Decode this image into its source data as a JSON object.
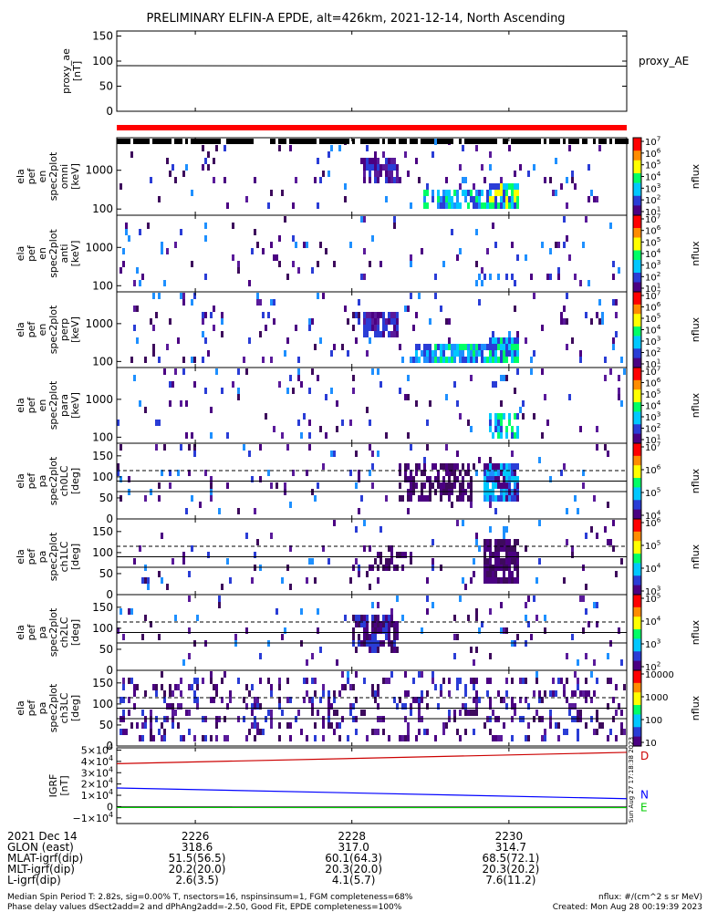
{
  "title": "PRELIMINARY ELFIN-A EPDE, alt=426km, 2021-12-14, North Ascending",
  "colors": {
    "red_bar": "#ff0000",
    "proxy_line": "#000000",
    "grf_d": "#cc0000",
    "grf_n": "#0000ff",
    "grf_e": "#00cc00",
    "colorscale": [
      "#ffffff",
      "#4b0082",
      "#2a3dd6",
      "#00c8ff",
      "#00ff66",
      "#ffff00",
      "#ff8c00",
      "#ff0000"
    ]
  },
  "chart_data": [
    {
      "type": "line",
      "panel": "proxy_ae",
      "ylabel_lines": [
        "proxy_ae",
        "[nT]"
      ],
      "legend": "proxy_AE",
      "yticks": [
        "150",
        "100",
        "50",
        "0"
      ],
      "ylim": [
        0,
        160
      ],
      "x": [
        "2225.0",
        "2231.5"
      ],
      "series": [
        {
          "name": "proxy_AE",
          "values": [
            91,
            90
          ]
        }
      ]
    },
    {
      "type": "heatmap",
      "panel": "en_omni",
      "ylabel_lines": [
        "ela",
        "pef",
        "en",
        "spec2plot",
        "omni",
        "[keV]"
      ],
      "yticks": [
        "1000",
        "100"
      ],
      "cbar_ticks": [
        "10^7",
        "10^6",
        "10^5",
        "10^4",
        "10^3",
        "10^2",
        "10^1"
      ],
      "cbar_label": "nflux"
    },
    {
      "type": "heatmap",
      "panel": "en_anti",
      "ylabel_lines": [
        "ela",
        "pef",
        "en",
        "spec2plot",
        "anti",
        "[keV]"
      ],
      "yticks": [
        "1000",
        "100"
      ],
      "cbar_ticks": [
        "10^7",
        "10^6",
        "10^5",
        "10^4",
        "10^3",
        "10^2",
        "10^1"
      ],
      "cbar_label": "nflux"
    },
    {
      "type": "heatmap",
      "panel": "en_perp",
      "ylabel_lines": [
        "ela",
        "pef",
        "en",
        "spec2plot",
        "perp",
        "[keV]"
      ],
      "yticks": [
        "1000",
        "100"
      ],
      "cbar_ticks": [
        "10^7",
        "10^6",
        "10^5",
        "10^4",
        "10^3",
        "10^2",
        "10^1"
      ],
      "cbar_label": "nflux"
    },
    {
      "type": "heatmap",
      "panel": "en_para",
      "ylabel_lines": [
        "ela",
        "pef",
        "en",
        "spec2plot",
        "para",
        "[keV]"
      ],
      "yticks": [
        "1000",
        "100"
      ],
      "cbar_ticks": [
        "10^7",
        "10^6",
        "10^5",
        "10^4",
        "10^3",
        "10^2",
        "10^1"
      ],
      "cbar_label": "nflux"
    },
    {
      "type": "heatmap",
      "panel": "pa_ch0LC",
      "ylabel_lines": [
        "ela",
        "pef",
        "pa",
        "spec2plot",
        "ch0LC",
        "[deg]"
      ],
      "yticks": [
        "150",
        "100",
        "50",
        "0"
      ],
      "cbar_ticks": [
        "10^7",
        "10^6",
        "10^5",
        "10^4"
      ],
      "cbar_label": "nflux"
    },
    {
      "type": "heatmap",
      "panel": "pa_ch1LC",
      "ylabel_lines": [
        "ela",
        "pef",
        "pa",
        "spec2plot",
        "ch1LC",
        "[deg]"
      ],
      "yticks": [
        "150",
        "100",
        "50",
        "0"
      ],
      "cbar_ticks": [
        "10^6",
        "10^5",
        "10^4",
        "10^3"
      ],
      "cbar_label": "nflux"
    },
    {
      "type": "heatmap",
      "panel": "pa_ch2LC",
      "ylabel_lines": [
        "ela",
        "pef",
        "pa",
        "spec2plot",
        "ch2LC",
        "[deg]"
      ],
      "yticks": [
        "150",
        "100",
        "50",
        "0"
      ],
      "cbar_ticks": [
        "10^5",
        "10^4",
        "10^3",
        "10^2"
      ],
      "cbar_label": "nflux"
    },
    {
      "type": "heatmap",
      "panel": "pa_ch3LC",
      "ylabel_lines": [
        "ela",
        "pef",
        "pa",
        "spec2plot",
        "ch3LC",
        "[deg]"
      ],
      "yticks": [
        "150",
        "100",
        "50",
        "0"
      ],
      "cbar_ticks": [
        "10000",
        "1000",
        "100",
        "10"
      ],
      "cbar_label": "nflux"
    },
    {
      "type": "line",
      "panel": "igrf",
      "ylabel_lines": [
        "IGRF",
        "[nT]"
      ],
      "yticks": [
        "5×10^4",
        "4×10^4",
        "3×10^4",
        "2×10^4",
        "1×10^4",
        "0",
        "−1×10^4"
      ],
      "ylim": [
        -15000,
        52000
      ],
      "x": [
        "2225.0",
        "2231.5"
      ],
      "series": [
        {
          "name": "D",
          "values": [
            38000,
            48000
          ]
        },
        {
          "name": "N",
          "values": [
            16500,
            7000
          ]
        },
        {
          "name": "E",
          "values": [
            -800,
            -900
          ]
        }
      ],
      "side_text": "Sun Aug 27 17:18:38 2023"
    }
  ],
  "xaxis": {
    "rows": [
      {
        "label": "2021 Dec 14",
        "values": [
          "2226",
          "2228",
          "2230"
        ]
      },
      {
        "label": "GLON (east)",
        "values": [
          "318.6",
          "317.0",
          "314.7"
        ]
      },
      {
        "label": "MLAT-igrf(dip)",
        "values": [
          "51.5(56.5)",
          "60.1(64.3)",
          "68.5(72.1)"
        ]
      },
      {
        "label": "MLT-igrf(dip)",
        "values": [
          "20.2(20.0)",
          "20.3(20.0)",
          "20.3(20.2)"
        ]
      },
      {
        "label": "L-igrf(dip)",
        "values": [
          "2.6(3.5)",
          "4.1(5.7)",
          "7.6(11.2)"
        ]
      }
    ]
  },
  "footer": {
    "line1": "Median Spin Period T: 2.82s, sig=0.00% T, nsectors=16, nspinsinsum=1, FGM completeness=68%",
    "line2": "Phase delay values dSect2add=2 and dPhAng2add=-2.50, Good Fit, EPDE completeness=100%",
    "right1": "nflux: #/(cm^2 s sr MeV)",
    "right2": "Created: Mon Aug 28 00:19:39 2023"
  }
}
